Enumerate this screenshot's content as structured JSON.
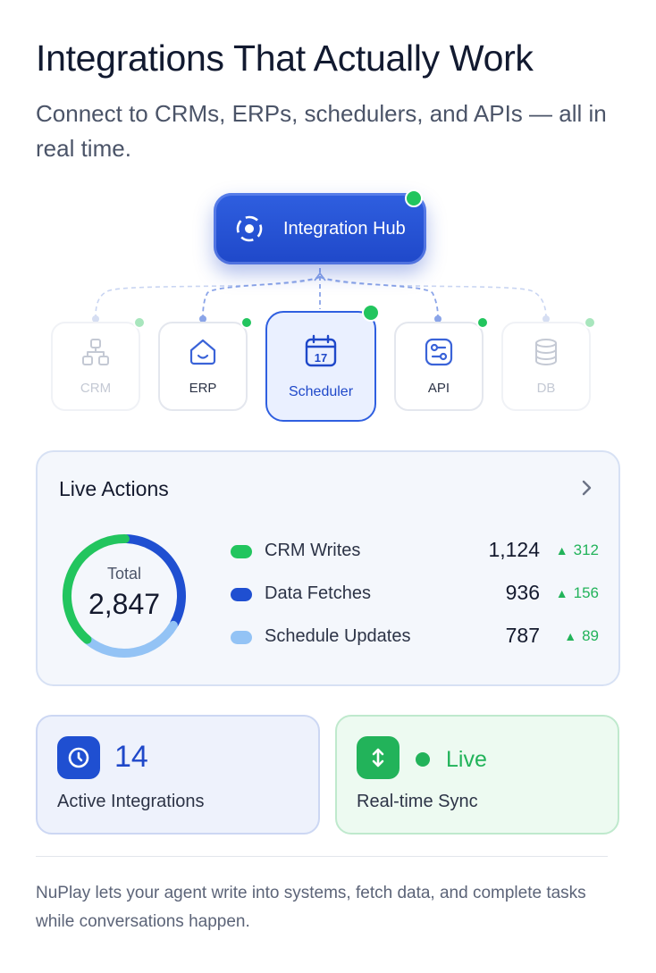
{
  "header": {
    "title": "Integrations That Actually Work",
    "subtitle": "Connect to CRMs, ERPs, schedulers, and APIs — all in real time."
  },
  "hub": {
    "label": "Integration Hub",
    "icon": "target-icon",
    "status_color": "#22c55e"
  },
  "nodes": [
    {
      "label": "CRM",
      "icon": "hierarchy-icon",
      "state": "faded"
    },
    {
      "label": "ERP",
      "icon": "house-icon",
      "state": "normal"
    },
    {
      "label": "Scheduler",
      "icon": "calendar-icon",
      "calendar_day": "17",
      "state": "active"
    },
    {
      "label": "API",
      "icon": "sliders-icon",
      "state": "normal"
    },
    {
      "label": "DB",
      "icon": "database-icon",
      "state": "faded"
    }
  ],
  "live_actions": {
    "title": "Live Actions",
    "total_label": "Total",
    "total_value": "2,847",
    "items": [
      {
        "name": "CRM Writes",
        "value": "1,124",
        "delta": "312",
        "color": "#22c55e"
      },
      {
        "name": "Data Fetches",
        "value": "936",
        "delta": "156",
        "color": "#1f4fd1"
      },
      {
        "name": "Schedule Updates",
        "value": "787",
        "delta": "89",
        "color": "#93c3f5"
      }
    ]
  },
  "chart_data": {
    "type": "pie",
    "categories": [
      "CRM Writes",
      "Data Fetches",
      "Schedule Updates"
    ],
    "values": [
      1124,
      936,
      787
    ],
    "title": "",
    "total": 2847
  },
  "stats": {
    "integrations": {
      "value": "14",
      "label": "Active Integrations",
      "icon": "clock-icon"
    },
    "sync": {
      "status": "Live",
      "label": "Real-time Sync",
      "icon": "up-down-arrows-icon"
    }
  },
  "footer": "NuPlay lets your agent write into systems, fetch data, and complete tasks while conversations happen.",
  "colors": {
    "accent": "#1f48c9",
    "success": "#22b35a",
    "light_blue": "#93c3f5"
  }
}
